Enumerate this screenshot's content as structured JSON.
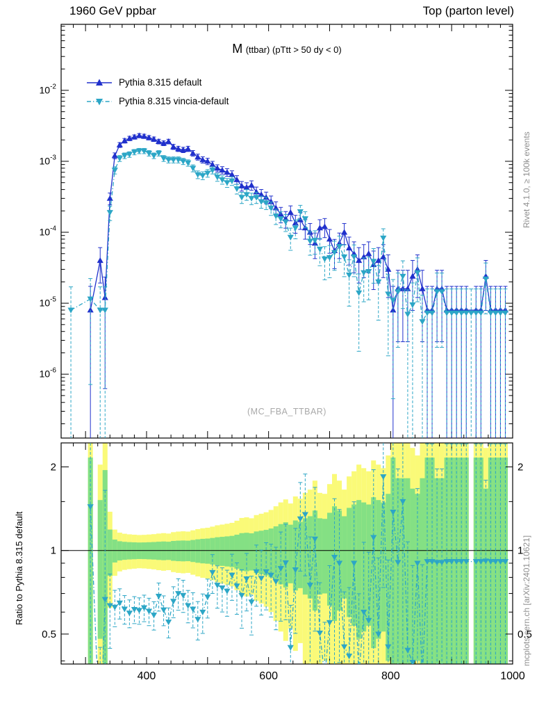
{
  "header": {
    "left": "1960 GeV ppbar",
    "right": "Top (parton level)"
  },
  "annotations": {
    "rivet_version": "Rivet 4.1.0, ≥ 100k events",
    "mcplots_citation": "mcplots.cern.ch [arXiv:2401.10621]",
    "watermark": "(MC_FBA_TTBAR)"
  },
  "chart_data": {
    "type": "line",
    "title": "M (ttbar) (pTtt > 50 dy < 0)",
    "title_main": "M",
    "title_rest": "(ttbar) (pTtt > 50 dy < 0)",
    "xlabel": "",
    "ylabel": "",
    "ratio_ylabel": "Ratio to Pythia 8.315 default",
    "legend_position": "top-left",
    "grid": false,
    "x_range": [
      260,
      1000
    ],
    "x_ticks_labeled": [
      400,
      600,
      800,
      1000
    ],
    "y_scale": "log",
    "y_log_range": [
      -6.9,
      -1.07
    ],
    "y_tick_exponents": [
      -2,
      -3,
      -4,
      -5,
      -6
    ],
    "ratio_scale": "log",
    "ratio_range": [
      0.39,
      2.44
    ],
    "ratio_ticks": [
      0.5,
      1,
      2
    ],
    "ratio_minor_ticks": [
      0.4,
      0.6,
      0.7,
      0.8,
      0.9,
      1.5
    ],
    "ratio_reference": 1,
    "bin_width": 8,
    "band_colors": {
      "inner": "#84e084",
      "outer": "#fafa78"
    },
    "x": [
      268,
      276,
      284,
      292,
      300,
      308,
      316,
      324,
      332,
      340,
      348,
      356,
      364,
      372,
      380,
      388,
      396,
      404,
      412,
      420,
      428,
      436,
      444,
      452,
      460,
      468,
      476,
      484,
      492,
      500,
      508,
      516,
      524,
      532,
      540,
      548,
      556,
      564,
      572,
      580,
      588,
      596,
      604,
      612,
      620,
      628,
      636,
      644,
      652,
      660,
      668,
      676,
      684,
      692,
      700,
      708,
      716,
      724,
      732,
      740,
      748,
      756,
      764,
      772,
      780,
      788,
      796,
      804,
      812,
      820,
      828,
      836,
      844,
      852,
      860,
      868,
      876,
      884,
      892,
      900,
      908,
      916,
      924,
      932,
      940,
      948,
      956,
      964,
      972,
      980,
      988,
      996
    ],
    "series": [
      {
        "name": "Pythia 8.315 default",
        "color": "#2030cc",
        "marker": "triangle-up",
        "line": "solid",
        "values": [
          null,
          null,
          null,
          null,
          null,
          8e-06,
          null,
          4e-05,
          1.2e-05,
          0.0003,
          0.0012,
          0.0017,
          0.00195,
          0.0021,
          0.0022,
          0.0023,
          0.00225,
          0.00215,
          0.00205,
          0.0019,
          0.0018,
          0.0019,
          0.0016,
          0.0015,
          0.00145,
          0.0015,
          0.0013,
          0.00115,
          0.00105,
          0.001,
          0.0009,
          0.0008,
          0.00075,
          0.0007,
          0.00065,
          0.00055,
          0.00045,
          0.00043,
          0.00046,
          0.00037,
          0.00034,
          0.00031,
          0.00027,
          0.00022,
          0.00018,
          0.000155,
          0.00019,
          0.000135,
          0.00015,
          0.000115,
          0.0001,
          7e-05,
          0.000115,
          0.00012,
          8e-05,
          5.5e-05,
          7e-05,
          0.0001,
          6e-05,
          5e-05,
          4e-05,
          4.5e-05,
          5e-05,
          3.5e-05,
          4e-05,
          4.5e-05,
          3e-05,
          8e-06,
          1.6e-05,
          1.6e-05,
          1.6e-05,
          2.4e-05,
          3e-05,
          1.6e-05,
          8e-06,
          8e-06,
          1.6e-05,
          1.6e-05,
          8e-06,
          8e-06,
          8e-06,
          8e-06,
          8e-06,
          null,
          8e-06,
          8e-06,
          2.4e-05,
          8e-06,
          8e-06,
          8e-06,
          8e-06,
          null
        ]
      },
      {
        "name": "Pythia 8.315 vincia-default",
        "color": "#2ca6c6",
        "marker": "triangle-down",
        "line": "dashdot",
        "values": [
          null,
          8e-06,
          null,
          null,
          null,
          1.15e-05,
          null,
          8e-06,
          8e-06,
          0.00019,
          0.00075,
          0.0011,
          0.0012,
          0.00125,
          0.00135,
          0.0014,
          0.0014,
          0.0013,
          0.0012,
          0.0013,
          0.0011,
          0.00105,
          0.00105,
          0.00105,
          0.001,
          0.00095,
          0.0008,
          0.00065,
          0.00063,
          0.00068,
          0.00075,
          0.0006,
          0.00055,
          0.0005,
          0.00053,
          0.00041,
          0.00031,
          0.00034,
          0.0003,
          0.00031,
          0.00027,
          0.00026,
          0.00022,
          0.00017,
          0.000155,
          0.00014,
          8.5e-05,
          0.000115,
          0.000195,
          0.000155,
          7.5e-05,
          7.7e-05,
          5.8e-05,
          4.2e-05,
          4.4e-05,
          5.2e-05,
          6.3e-05,
          4.5e-05,
          2.5e-05,
          4.5e-05,
          1.4e-05,
          2.7e-05,
          2.8e-05,
          3.9e-05,
          2e-05,
          8.3e-05,
          1.35e-05,
          1.1e-05,
          1.45e-05,
          2.4e-05,
          7e-06,
          9.5e-06,
          2.7e-05,
          5.5e-06,
          7.3e-06,
          7.3e-06,
          1.45e-05,
          1.45e-05,
          7.3e-06,
          7.3e-06,
          7.3e-06,
          7.3e-06,
          7.3e-06,
          7.3e-06,
          7.3e-06,
          7.3e-06,
          2.2e-05,
          7.3e-06,
          7.3e-06,
          7.3e-06,
          7.3e-06,
          null
        ]
      }
    ]
  }
}
